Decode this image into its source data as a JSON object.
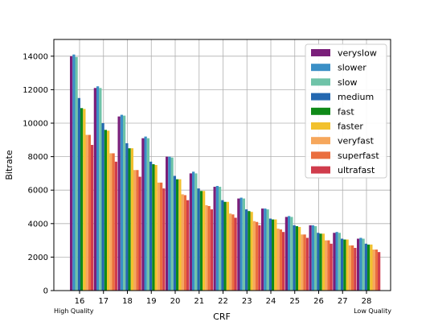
{
  "chart_data": {
    "type": "bar",
    "title": "",
    "xlabel": "CRF",
    "ylabel": "Bitrate",
    "ylim": [
      0,
      15000
    ],
    "yticks": [
      0,
      2000,
      4000,
      6000,
      8000,
      10000,
      12000,
      14000
    ],
    "categories": [
      "16",
      "17",
      "18",
      "19",
      "20",
      "21",
      "22",
      "23",
      "24",
      "25",
      "26",
      "27",
      "28"
    ],
    "grid": true,
    "legend_position": "top-right",
    "annotations": {
      "left": "High Quality",
      "right": "Low Quality"
    },
    "series": [
      {
        "name": "veryslow",
        "color": "#7a1f7a",
        "values": [
          14000,
          12100,
          10400,
          9100,
          8000,
          7000,
          6200,
          5500,
          4900,
          4400,
          3900,
          3450,
          3100
        ]
      },
      {
        "name": "slower",
        "color": "#3a8fc6",
        "values": [
          14100,
          12200,
          10500,
          9200,
          8000,
          7100,
          6250,
          5550,
          4900,
          4450,
          3900,
          3500,
          3150
        ]
      },
      {
        "name": "slow",
        "color": "#6fc3a8",
        "values": [
          13950,
          12100,
          10450,
          9100,
          7950,
          7000,
          6200,
          5500,
          4850,
          4400,
          3850,
          3450,
          3100
        ]
      },
      {
        "name": "medium",
        "color": "#2468b0",
        "values": [
          11500,
          10000,
          8800,
          7700,
          6850,
          6100,
          5400,
          4850,
          4300,
          3900,
          3450,
          3100,
          2800
        ]
      },
      {
        "name": "fast",
        "color": "#0f8a18",
        "values": [
          10900,
          9600,
          8500,
          7550,
          6650,
          5950,
          5300,
          4750,
          4250,
          3850,
          3400,
          3050,
          2750
        ]
      },
      {
        "name": "faster",
        "color": "#f2c12e",
        "values": [
          10850,
          9550,
          8500,
          7500,
          6650,
          5950,
          5300,
          4700,
          4250,
          3800,
          3400,
          3050,
          2750
        ]
      },
      {
        "name": "veryfast",
        "color": "#f6a75c",
        "values": [
          9300,
          8200,
          7200,
          6450,
          5750,
          5100,
          4600,
          4150,
          3700,
          3350,
          3000,
          2700,
          2450
        ]
      },
      {
        "name": "superfast",
        "color": "#ea6e3e",
        "values": [
          9300,
          8200,
          7200,
          6450,
          5700,
          5050,
          4550,
          4100,
          3650,
          3350,
          3000,
          2700,
          2450
        ]
      },
      {
        "name": "ultrafast",
        "color": "#d03c4c",
        "values": [
          8700,
          7700,
          6800,
          6100,
          5400,
          4850,
          4350,
          3900,
          3500,
          3150,
          2800,
          2550,
          2300
        ]
      }
    ]
  }
}
